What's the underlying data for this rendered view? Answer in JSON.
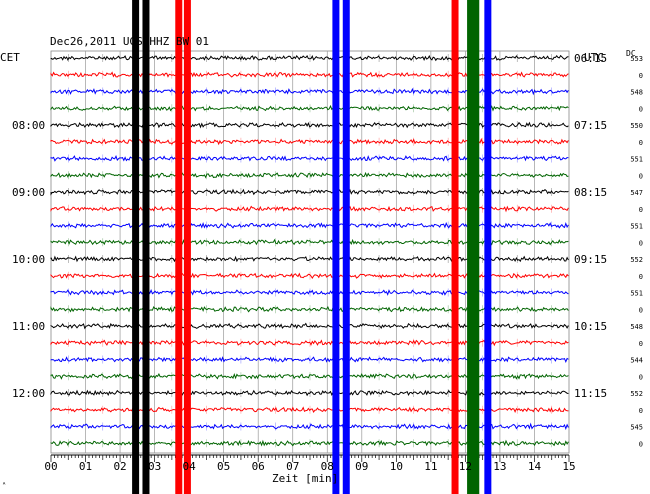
{
  "chart_data": {
    "type": "seismogram-helicorder",
    "title": "Dec26,2011   UGS HHZ BW 01",
    "left_header": "CET",
    "right_header": "UTC",
    "offset_header": "DC",
    "xlabel": "Zeit [min]",
    "x_ticks": [
      "00",
      "01",
      "02",
      "03",
      "04",
      "05",
      "06",
      "07",
      "08",
      "09",
      "10",
      "11",
      "12",
      "13",
      "14",
      "15"
    ],
    "xlim": [
      0,
      15
    ],
    "left_hour_labels": [
      {
        "row": 4,
        "label": "08:00"
      },
      {
        "row": 8,
        "label": "09:00"
      },
      {
        "row": 12,
        "label": "10:00"
      },
      {
        "row": 16,
        "label": "11:00"
      },
      {
        "row": 20,
        "label": "12:00"
      }
    ],
    "right_hour_labels": [
      {
        "row": 0,
        "label": "06:15"
      },
      {
        "row": 4,
        "label": "07:15"
      },
      {
        "row": 8,
        "label": "08:15"
      },
      {
        "row": 12,
        "label": "09:15"
      },
      {
        "row": 16,
        "label": "10:15"
      },
      {
        "row": 20,
        "label": "11:15"
      }
    ],
    "trace_colors": [
      "#000000",
      "#ff0000",
      "#0000ff",
      "#006400"
    ],
    "trace_count": 24,
    "offsets": [
      "553",
      "0",
      "548",
      "0",
      "550",
      "0",
      "551",
      "0",
      "547",
      "0",
      "551",
      "0",
      "552",
      "0",
      "551",
      "0",
      "548",
      "0",
      "544",
      "0",
      "552",
      "0",
      "545",
      "0"
    ],
    "events": [
      {
        "minute": 2.45,
        "color": "#000000"
      },
      {
        "minute": 2.75,
        "color": "#000000"
      },
      {
        "minute": 3.7,
        "color": "#ff0000"
      },
      {
        "minute": 3.95,
        "color": "#ff0000"
      },
      {
        "minute": 8.25,
        "color": "#0000ff"
      },
      {
        "minute": 8.55,
        "color": "#0000ff"
      },
      {
        "minute": 11.7,
        "color": "#ff0000"
      },
      {
        "minute": 12.15,
        "color": "#006400"
      },
      {
        "minute": 12.3,
        "color": "#006400"
      },
      {
        "minute": 12.65,
        "color": "#0000ff"
      }
    ],
    "corner_mark": "ᴬ"
  }
}
